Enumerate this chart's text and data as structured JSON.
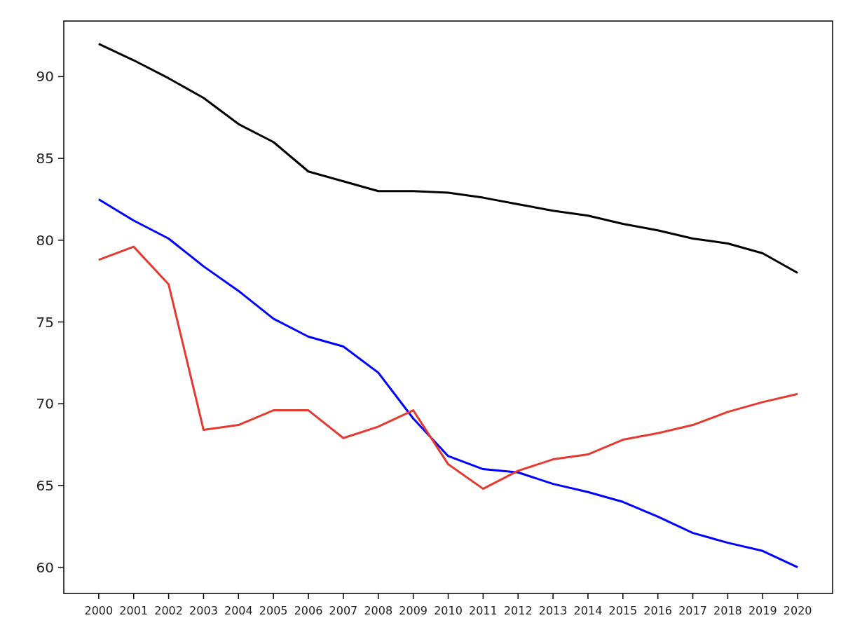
{
  "chart_data": {
    "type": "line",
    "categories": [
      "2000",
      "2001",
      "2002",
      "2003",
      "2004",
      "2005",
      "2006",
      "2007",
      "2008",
      "2009",
      "2010",
      "2011",
      "2012",
      "2013",
      "2014",
      "2015",
      "2016",
      "2017",
      "2018",
      "2019",
      "2020"
    ],
    "series": [
      {
        "color": "#000000",
        "values": [
          92.0,
          91.0,
          89.9,
          88.7,
          87.1,
          86.0,
          84.2,
          83.6,
          83.0,
          83.0,
          82.9,
          82.6,
          82.2,
          81.8,
          81.5,
          81.0,
          80.6,
          80.1,
          79.8,
          79.2,
          78.0
        ]
      },
      {
        "color": "#0000ff",
        "values": [
          82.5,
          81.2,
          80.1,
          78.4,
          76.9,
          75.2,
          74.1,
          73.5,
          71.9,
          69.1,
          66.8,
          66.0,
          65.8,
          65.1,
          64.6,
          64.0,
          63.1,
          62.1,
          61.5,
          61.0,
          60.0
        ]
      },
      {
        "color": "#e53a2f",
        "values": [
          78.8,
          79.6,
          77.3,
          68.4,
          68.7,
          69.6,
          69.6,
          67.9,
          68.6,
          69.6,
          66.3,
          64.8,
          65.9,
          66.6,
          66.9,
          67.8,
          68.2,
          68.7,
          69.5,
          70.1,
          70.6
        ]
      }
    ],
    "ylim": [
      58.4,
      93.4
    ],
    "yticks": [
      60,
      65,
      70,
      75,
      80,
      85,
      90
    ],
    "grid": false
  }
}
